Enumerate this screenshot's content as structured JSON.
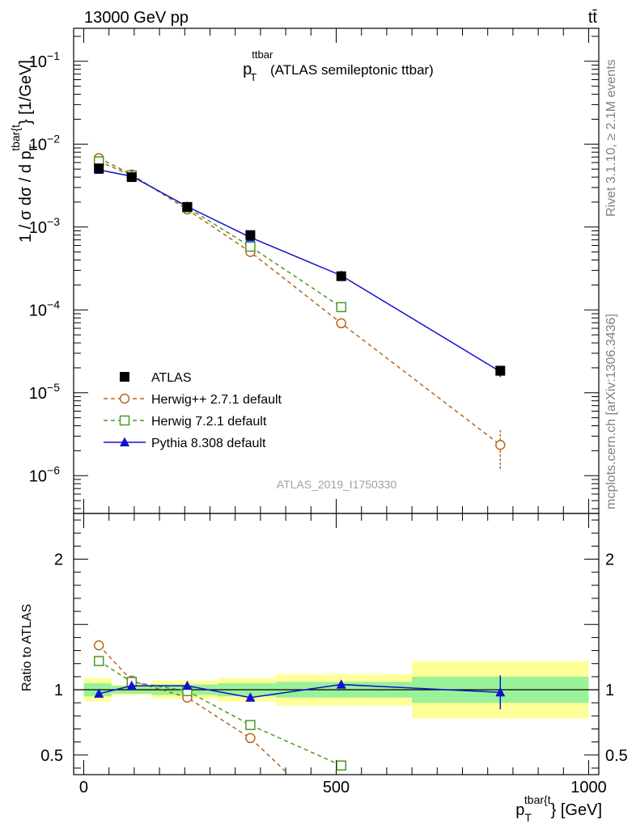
{
  "header": {
    "energy_label": "13000 GeV pp",
    "process_label": "tt̄"
  },
  "side_labels": {
    "rivet": "Rivet 3.1.10, ≥ 2.1M events",
    "mcplots": "mcplots.cern.ch [arXiv:1306.3436]"
  },
  "analysis_label": "ATLAS_2019_I1750330",
  "chart_data": [
    {
      "type": "line",
      "panel": "main",
      "title": {
        "main": "p",
        "sub": "T",
        "sup": "ttbar",
        "rest": " (ATLAS semileptonic ttbar)"
      },
      "ylabel": "1 / σ dσ / d p_T^{tbar{t}} [1/GeV]",
      "ylabel_parts": {
        "pre": "1 / σ dσ / d p",
        "sub": "T",
        "sup": "tbar{t",
        "post": "} [1/GeV]"
      },
      "yscale": "log",
      "ylim": [
        3.5e-07,
        0.25
      ],
      "xlim": [
        -20,
        1020
      ],
      "y_ticks": [
        {
          "value": 1e-06,
          "base": "10",
          "exp": "−6"
        },
        {
          "value": 1e-05,
          "base": "10",
          "exp": "−5"
        },
        {
          "value": 0.0001,
          "base": "10",
          "exp": "−4"
        },
        {
          "value": 0.001,
          "base": "10",
          "exp": "−3"
        },
        {
          "value": 0.01,
          "base": "10",
          "exp": "−2"
        },
        {
          "value": 0.1,
          "base": "10",
          "exp": "−1"
        }
      ],
      "legend_position": "bottom-left",
      "series": [
        {
          "name": "ATLAS",
          "kind": "data",
          "color": "#000000",
          "marker": "filled-square",
          "x": [
            30,
            95,
            205,
            330,
            510,
            825
          ],
          "y": [
            0.0051,
            0.004,
            0.00175,
            0.0008,
            0.000255,
            1.85e-05
          ],
          "yerr": [
            0.0002,
            0.00015,
            6e-05,
            6e-05,
            1.5e-05,
            2.5e-06
          ]
        },
        {
          "name": "Herwig++ 2.7.1 default",
          "kind": "mc",
          "color": "#b8651b",
          "marker": "open-circle",
          "dash": true,
          "x": [
            30,
            95,
            205,
            330,
            510,
            825
          ],
          "y": [
            0.0068,
            0.0043,
            0.00163,
            0.0005,
            6.9e-05,
            2.35e-06
          ],
          "yerr": [
            0,
            0,
            0,
            3e-05,
            0,
            1.2e-06
          ]
        },
        {
          "name": "Herwig 7.2.1 default",
          "kind": "mc",
          "color": "#4a9a20",
          "marker": "open-square",
          "dash": true,
          "x": [
            30,
            95,
            205,
            330,
            510
          ],
          "y": [
            0.0062,
            0.0042,
            0.00173,
            0.00058,
            0.000108
          ],
          "yerr": [
            0,
            0,
            0,
            0,
            0
          ]
        },
        {
          "name": "Pythia 8.308 default",
          "kind": "mc",
          "color": "#1010d0",
          "marker": "filled-triangle",
          "dash": false,
          "x": [
            30,
            95,
            205,
            330,
            510,
            825
          ],
          "y": [
            0.0049,
            0.0041,
            0.00177,
            0.00075,
            0.00026,
            1.8e-05
          ],
          "yerr": [
            0,
            0,
            0,
            4e-05,
            1e-05,
            2.5e-06
          ]
        }
      ]
    },
    {
      "type": "line",
      "panel": "ratio",
      "ylabel": "Ratio to ATLAS",
      "xlabel": "p_T^{tbar{t}} [GeV]",
      "xlabel_parts": {
        "pre": "p",
        "sub": "T",
        "sup": "tbar{t",
        "post": "} [GeV]"
      },
      "ylim": [
        0.35,
        2.35
      ],
      "xlim": [
        -20,
        1020
      ],
      "x_ticks": [
        0,
        500,
        1000
      ],
      "y_ticks": [
        0.5,
        1,
        2
      ],
      "bands": [
        {
          "x0": 0,
          "x1": 55,
          "inner": [
            0.95,
            1.05
          ],
          "outer": [
            0.91,
            1.09
          ]
        },
        {
          "x0": 55,
          "x1": 135,
          "inner": [
            0.97,
            1.03
          ],
          "outer": [
            0.96,
            1.04
          ]
        },
        {
          "x0": 135,
          "x1": 265,
          "inner": [
            0.96,
            1.04
          ],
          "outer": [
            0.93,
            1.07
          ]
        },
        {
          "x0": 265,
          "x1": 380,
          "inner": [
            0.95,
            1.05
          ],
          "outer": [
            0.91,
            1.09
          ]
        },
        {
          "x0": 380,
          "x1": 650,
          "inner": [
            0.94,
            1.06
          ],
          "outer": [
            0.88,
            1.12
          ]
        },
        {
          "x0": 650,
          "x1": 1000,
          "inner": [
            0.9,
            1.1
          ],
          "outer": [
            0.78,
            1.22
          ]
        }
      ],
      "series": [
        {
          "name": "Herwig++ 2.7.1 default",
          "color": "#b8651b",
          "marker": "open-circle",
          "dash": true,
          "x": [
            30,
            95,
            205,
            330,
            420
          ],
          "y": [
            1.34,
            1.07,
            0.94,
            0.63,
            0.3
          ],
          "yerr": [
            0,
            0,
            0,
            0.025,
            0
          ],
          "markers": [
            true,
            true,
            true,
            true,
            false
          ]
        },
        {
          "name": "Herwig 7.2.1 default",
          "color": "#4a9a20",
          "marker": "open-square",
          "dash": true,
          "x": [
            30,
            95,
            205,
            330,
            510
          ],
          "y": [
            1.22,
            1.06,
            0.99,
            0.73,
            0.42
          ],
          "yerr": [
            0,
            0,
            0,
            0.02,
            0.03
          ],
          "markers": [
            true,
            true,
            true,
            true,
            true
          ]
        },
        {
          "name": "Pythia 8.308 default",
          "color": "#1010d0",
          "marker": "filled-triangle",
          "dash": false,
          "x": [
            30,
            95,
            205,
            330,
            510,
            825
          ],
          "y": [
            0.97,
            1.03,
            1.03,
            0.94,
            1.04,
            0.98
          ],
          "yerr": [
            0,
            0,
            0.02,
            0.03,
            0.03,
            0.13
          ],
          "markers": [
            true,
            true,
            true,
            true,
            true,
            true
          ]
        }
      ]
    }
  ]
}
